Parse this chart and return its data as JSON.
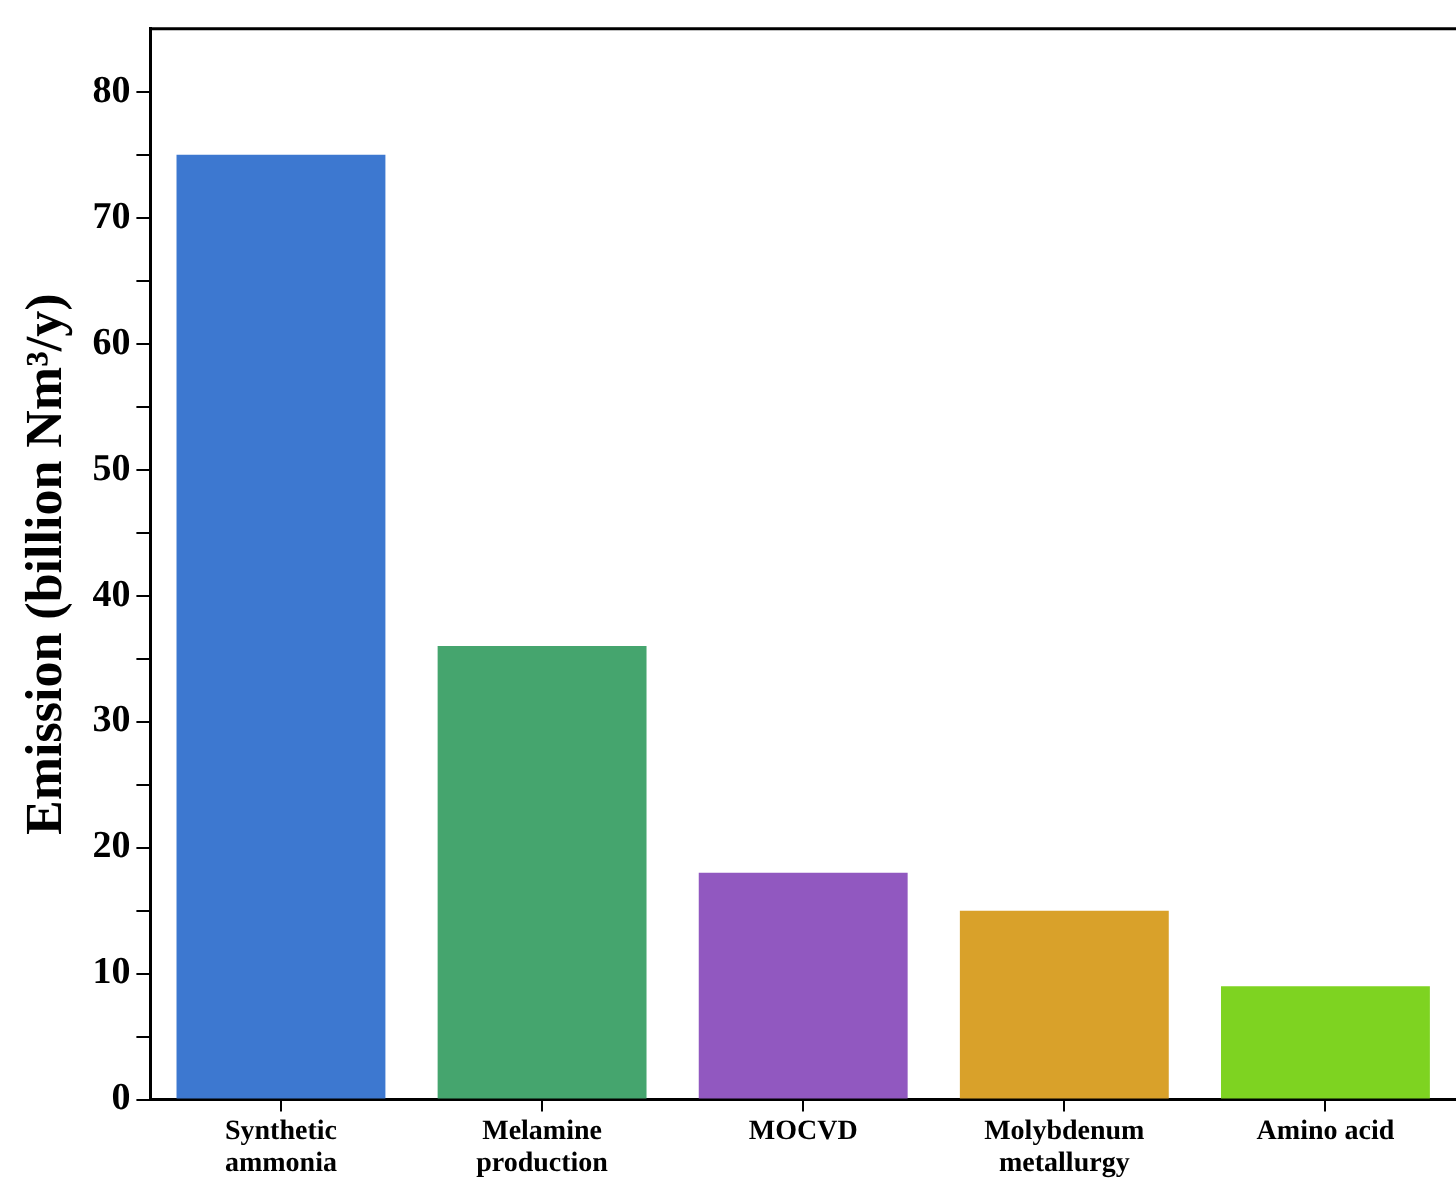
{
  "chart_data": {
    "type": "bar",
    "ylabel": "Emission (billion Nm³/y)",
    "categories": [
      "Synthetic\nammonia",
      "Melamine\nproduction",
      "MOCVD",
      "Molybdenum\nmetallurgy",
      "Amino acid"
    ],
    "values": [
      75,
      36,
      18,
      15,
      9
    ],
    "colors": [
      "#3d78d0",
      "#45a56e",
      "#9158c0",
      "#d9a12a",
      "#7ed321"
    ],
    "ylim": [
      0,
      85
    ],
    "yticks": [
      0,
      {
        "value": 5,
        "label": null
      },
      10,
      {
        "value": 15,
        "label": null
      },
      20,
      {
        "value": 25,
        "label": null
      },
      30,
      {
        "value": 35,
        "label": null
      },
      40,
      {
        "value": 45,
        "label": null
      },
      50,
      {
        "value": 55,
        "label": null
      },
      60,
      {
        "value": 65,
        "label": null
      },
      70,
      {
        "value": 75,
        "label": null
      },
      80
    ],
    "grid": false,
    "legend": false
  }
}
